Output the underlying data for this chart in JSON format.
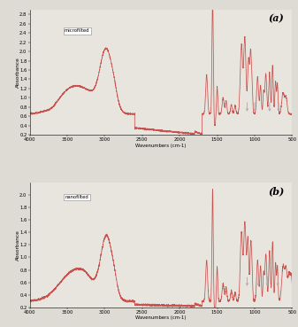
{
  "title_a": "(a)",
  "title_b": "(b)",
  "label_a": "microfilted",
  "label_b": "nanofilted",
  "xlabel": "Wavenumbers (cm-1)",
  "ylabel": "Absorbance",
  "xlim": [
    4000,
    500
  ],
  "ylim_a": [
    0.2,
    2.9
  ],
  "ylim_b": [
    0.2,
    2.2
  ],
  "yticks_a": [
    0.2,
    0.4,
    0.6,
    0.8,
    1.0,
    1.2,
    1.4,
    1.6,
    1.8,
    2.0,
    2.2,
    2.4,
    2.6,
    2.8
  ],
  "yticks_b": [
    0.2,
    0.4,
    0.6,
    0.8,
    1.0,
    1.2,
    1.4,
    1.6,
    1.8,
    2.0
  ],
  "xticks": [
    4000,
    3500,
    3000,
    2500,
    2000,
    1500,
    1000,
    500
  ],
  "line_color": "#c8524e",
  "background_color": "#e8e4de",
  "border_color": "#999999",
  "arrow_color": "#aaaaaa",
  "fig_bg": "#dedad4"
}
